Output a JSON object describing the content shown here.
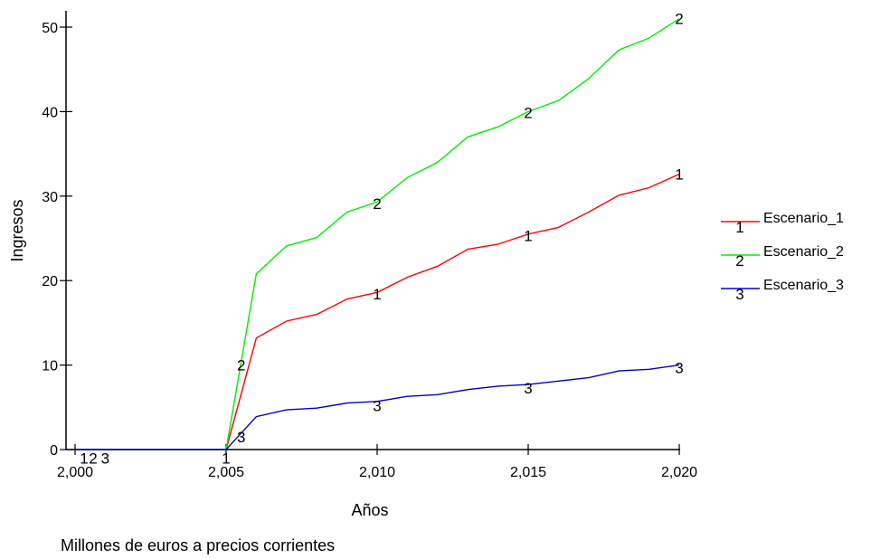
{
  "chart_data": {
    "type": "line",
    "title": "",
    "xlabel": "Años",
    "ylabel": "Ingresos",
    "caption": "Millones de euros a precios corrientes",
    "xlim": [
      2000,
      2020
    ],
    "ylim": [
      0,
      52
    ],
    "x_ticks": [
      2000,
      2005,
      2010,
      2015,
      2020
    ],
    "x_tick_labels": [
      "2,000",
      "2,005",
      "2,010",
      "2,015",
      "2,020"
    ],
    "y_ticks": [
      0,
      10,
      20,
      30,
      40,
      50
    ],
    "y_tick_labels": [
      "0",
      "10",
      "20",
      "30",
      "40",
      "50"
    ],
    "grid": false,
    "legend_position": "right",
    "x": [
      2000,
      2001,
      2002,
      2003,
      2004,
      2005,
      2006,
      2007,
      2008,
      2009,
      2010,
      2011,
      2012,
      2013,
      2014,
      2015,
      2016,
      2017,
      2018,
      2019,
      2020
    ],
    "series": [
      {
        "name": "Escenario_1",
        "marker": "1",
        "color": "#ff0000",
        "values": [
          0,
          0,
          0,
          0,
          0,
          0,
          13.2,
          15.2,
          16.0,
          17.8,
          18.6,
          20.4,
          21.7,
          23.7,
          24.3,
          25.5,
          26.3,
          28.1,
          30.1,
          31.0,
          32.6
        ]
      },
      {
        "name": "Escenario_2",
        "marker": "2",
        "color": "#00ee00",
        "values": [
          0,
          0,
          0,
          0,
          0,
          0,
          20.8,
          24.1,
          25.1,
          28.1,
          29.3,
          32.2,
          34.0,
          37.0,
          38.2,
          40.0,
          41.3,
          43.9,
          47.3,
          48.7,
          51.0
        ]
      },
      {
        "name": "Escenario_3",
        "marker": "3",
        "color": "#0000cc",
        "values": [
          0,
          0,
          0,
          0,
          0,
          0,
          3.9,
          4.7,
          4.9,
          5.5,
          5.7,
          6.3,
          6.5,
          7.1,
          7.5,
          7.7,
          8.1,
          8.5,
          9.3,
          9.5,
          10.0
        ]
      }
    ]
  }
}
